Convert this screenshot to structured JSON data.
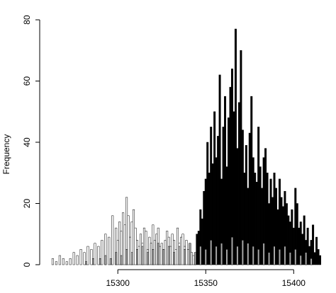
{
  "chart_data": {
    "type": "bar",
    "title": "",
    "xlabel": "",
    "ylabel": "Frequency",
    "xlim": [
      15258,
      15416
    ],
    "ylim": [
      0,
      80
    ],
    "x_ticks": [
      15300,
      15350,
      15400
    ],
    "x_tick_labels": [
      "15300",
      "15350",
      "15400"
    ],
    "y_ticks": [
      0,
      20,
      40,
      60,
      80
    ],
    "y_tick_labels": [
      "0",
      "20",
      "40",
      "60",
      "80"
    ],
    "grid": false,
    "legend": "none",
    "bin_width": 1,
    "series": [
      {
        "fill": "#ffffff",
        "stroke": "#000000",
        "x": [
          15263,
          15265,
          15267,
          15269,
          15271,
          15273,
          15275,
          15277,
          15279,
          15281,
          15283,
          15285,
          15287,
          15289,
          15291,
          15293,
          15295,
          15297,
          15299,
          15300,
          15301,
          15302,
          15303,
          15304,
          15305,
          15306,
          15307,
          15308,
          15309,
          15310,
          15311,
          15312,
          15313,
          15314,
          15315,
          15316,
          15317,
          15318,
          15319,
          15320,
          15321,
          15322,
          15323,
          15324,
          15325,
          15326,
          15327,
          15328,
          15329,
          15330,
          15331,
          15332,
          15333,
          15334,
          15335,
          15336,
          15337,
          15338,
          15339,
          15340,
          15341,
          15342,
          15343,
          15344
        ],
        "values": [
          2,
          1,
          3,
          2,
          1,
          2,
          4,
          3,
          5,
          4,
          6,
          5,
          7,
          6,
          8,
          10,
          9,
          16,
          12,
          8,
          14,
          11,
          17,
          13,
          22,
          16,
          9,
          14,
          18,
          12,
          8,
          6,
          10,
          7,
          12,
          11,
          5,
          9,
          7,
          13,
          8,
          10,
          12,
          6,
          7,
          5,
          8,
          11,
          9,
          6,
          10,
          8,
          5,
          12,
          7,
          9,
          10,
          6,
          8,
          5,
          7,
          4,
          3,
          2
        ]
      },
      {
        "fill": "#000000",
        "stroke": "#000000",
        "x": [
          15345,
          15346,
          15347,
          15348,
          15349,
          15350,
          15351,
          15352,
          15353,
          15354,
          15355,
          15356,
          15357,
          15358,
          15359,
          15360,
          15361,
          15362,
          15363,
          15364,
          15365,
          15366,
          15367,
          15368,
          15369,
          15370,
          15371,
          15372,
          15373,
          15374,
          15375,
          15376,
          15377,
          15378,
          15379,
          15380,
          15381,
          15382,
          15383,
          15384,
          15385,
          15386,
          15387,
          15388,
          15389,
          15390,
          15391,
          15392,
          15393,
          15394,
          15395,
          15396,
          15397,
          15398,
          15399,
          15400,
          15401,
          15402,
          15403,
          15404,
          15405,
          15406,
          15407,
          15408,
          15409,
          15410,
          15411,
          15412,
          15413,
          15414,
          15415
        ],
        "values": [
          10,
          11,
          18,
          15,
          24,
          28,
          40,
          30,
          45,
          33,
          50,
          35,
          42,
          62,
          28,
          45,
          55,
          32,
          48,
          58,
          64,
          50,
          77,
          38,
          53,
          70,
          44,
          30,
          39,
          25,
          43,
          55,
          35,
          30,
          27,
          45,
          32,
          25,
          35,
          38,
          30,
          20,
          28,
          22,
          30,
          25,
          18,
          28,
          22,
          19,
          24,
          20,
          16,
          14,
          18,
          12,
          25,
          20,
          12,
          14,
          10,
          16,
          8,
          12,
          6,
          8,
          13,
          4,
          9,
          5,
          3
        ]
      },
      {
        "fill": "#a8a8a8",
        "stroke": "#000000",
        "x": [
          15282,
          15286,
          15290,
          15293,
          15296,
          15299,
          15302,
          15305,
          15308,
          15311,
          15314,
          15317,
          15320,
          15323,
          15326,
          15329,
          15332,
          15335,
          15338,
          15341,
          15344,
          15347,
          15350,
          15353,
          15356,
          15359,
          15362,
          15365,
          15368,
          15371,
          15374,
          15377,
          15380,
          15383,
          15386,
          15389,
          15392,
          15395,
          15398,
          15401,
          15404,
          15407,
          15410
        ],
        "values": [
          1,
          2,
          2,
          3,
          2,
          4,
          3,
          5,
          4,
          5,
          6,
          4,
          5,
          7,
          5,
          6,
          4,
          6,
          5,
          7,
          4,
          6,
          5,
          8,
          6,
          7,
          5,
          9,
          6,
          8,
          7,
          6,
          5,
          7,
          4,
          6,
          5,
          6,
          4,
          5,
          3,
          4,
          2
        ]
      }
    ]
  }
}
